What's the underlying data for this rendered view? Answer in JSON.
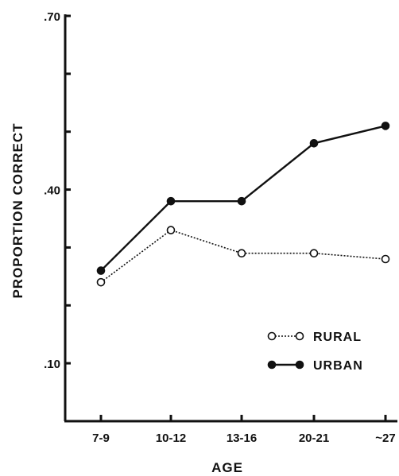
{
  "chart_data": {
    "type": "line",
    "title": "",
    "xlabel": "AGE",
    "ylabel": "PROPORTION CORRECT",
    "categories": [
      "7-9",
      "10-12",
      "13-16",
      "20-21",
      "~27"
    ],
    "ylim": [
      0.0,
      0.7
    ],
    "yticks_labeled": [
      ".70",
      ".40",
      ".10"
    ],
    "yticks_labeled_values": [
      0.7,
      0.4,
      0.1
    ],
    "yticks_minor_values": [
      0.0,
      0.1,
      0.2,
      0.3,
      0.4,
      0.5,
      0.6,
      0.7
    ],
    "grid": false,
    "legend_position": "bottom-right",
    "series": [
      {
        "name": "RURAL",
        "values": [
          0.24,
          0.33,
          0.29,
          0.29,
          0.28
        ],
        "marker": "open-circle",
        "line_style": "dotted",
        "color": "#111111"
      },
      {
        "name": "URBAN",
        "values": [
          0.26,
          0.38,
          0.38,
          0.48,
          0.51
        ],
        "marker": "filled-circle",
        "line_style": "solid",
        "color": "#111111"
      }
    ]
  }
}
